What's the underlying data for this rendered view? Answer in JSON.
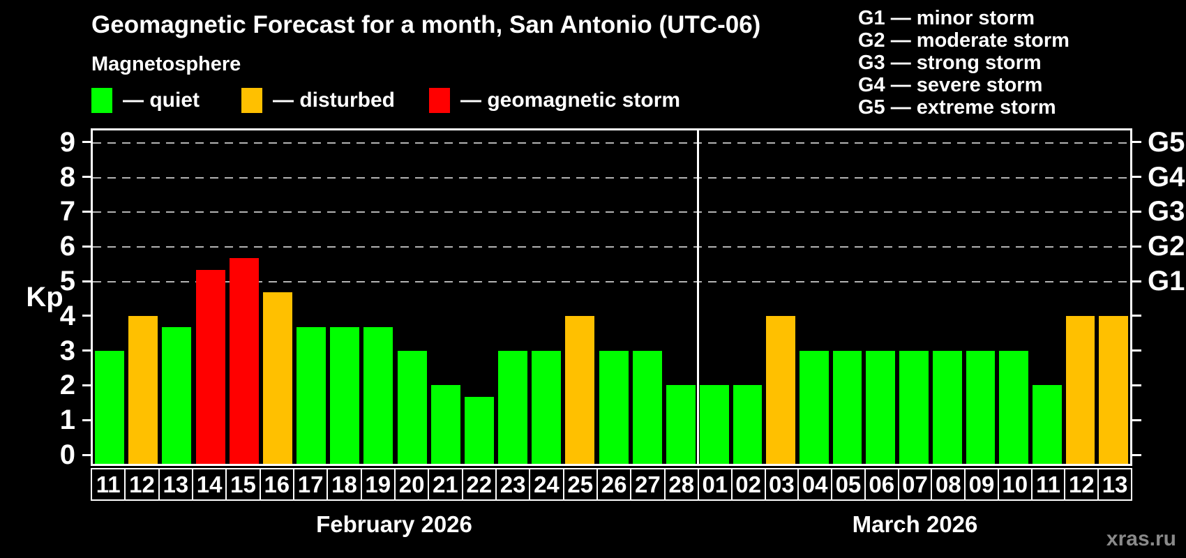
{
  "header": {
    "title": "Geomagnetic Forecast for a month, San Antonio (UTC-06)",
    "subtitle": "Magnetosphere"
  },
  "legend": {
    "items": [
      {
        "key": "quiet",
        "label": "— quiet",
        "color": "#00ff00"
      },
      {
        "key": "disturbed",
        "label": "— disturbed",
        "color": "#ffc000"
      },
      {
        "key": "storm",
        "label": "— geomagnetic storm",
        "color": "#ff0000"
      }
    ]
  },
  "g_scale_legend": {
    "items": [
      "G1 — minor storm",
      "G2 — moderate storm",
      "G3 — strong storm",
      "G4 — severe storm",
      "G5 — extreme storm"
    ]
  },
  "watermark": "xras.ru",
  "chart_data": {
    "type": "bar",
    "title": "Geomagnetic Forecast for a month, San Antonio (UTC-06)",
    "subtitle": "Magnetosphere",
    "ylabel": "Kp",
    "xlabel": "",
    "ylim": [
      0,
      9
    ],
    "yticks": [
      0,
      1,
      2,
      3,
      4,
      5,
      6,
      7,
      8,
      9
    ],
    "gridlines_at_kp": [
      5,
      6,
      7,
      8,
      9
    ],
    "grid_style": "dashed gray horizontal lines at storm levels only",
    "legend_position": "top-left",
    "colors": {
      "quiet": "#00ff00",
      "disturbed": "#ffc000",
      "storm": "#ff0000"
    },
    "right_axis_labels": [
      {
        "text": "G1",
        "kp": 5
      },
      {
        "text": "G2",
        "kp": 6
      },
      {
        "text": "G3",
        "kp": 7
      },
      {
        "text": "G4",
        "kp": 8
      },
      {
        "text": "G5",
        "kp": 9
      }
    ],
    "months": [
      {
        "label": "February 2026",
        "days": [
          {
            "day": "11",
            "kp": 3,
            "status": "quiet"
          },
          {
            "day": "12",
            "kp": 4,
            "status": "disturbed"
          },
          {
            "day": "13",
            "kp": 3.67,
            "status": "quiet"
          },
          {
            "day": "14",
            "kp": 5.33,
            "status": "storm"
          },
          {
            "day": "15",
            "kp": 5.67,
            "status": "storm"
          },
          {
            "day": "16",
            "kp": 4.67,
            "status": "disturbed"
          },
          {
            "day": "17",
            "kp": 3.67,
            "status": "quiet"
          },
          {
            "day": "18",
            "kp": 3.67,
            "status": "quiet"
          },
          {
            "day": "19",
            "kp": 3.67,
            "status": "quiet"
          },
          {
            "day": "20",
            "kp": 3,
            "status": "quiet"
          },
          {
            "day": "21",
            "kp": 2,
            "status": "quiet"
          },
          {
            "day": "22",
            "kp": 1.67,
            "status": "quiet"
          },
          {
            "day": "23",
            "kp": 3,
            "status": "quiet"
          },
          {
            "day": "24",
            "kp": 3,
            "status": "quiet"
          },
          {
            "day": "25",
            "kp": 4,
            "status": "disturbed"
          },
          {
            "day": "26",
            "kp": 3,
            "status": "quiet"
          },
          {
            "day": "27",
            "kp": 3,
            "status": "quiet"
          },
          {
            "day": "28",
            "kp": 2,
            "status": "quiet"
          }
        ]
      },
      {
        "label": "March 2026",
        "days": [
          {
            "day": "01",
            "kp": 2,
            "status": "quiet"
          },
          {
            "day": "02",
            "kp": 2,
            "status": "quiet"
          },
          {
            "day": "03",
            "kp": 4,
            "status": "disturbed"
          },
          {
            "day": "04",
            "kp": 3,
            "status": "quiet"
          },
          {
            "day": "05",
            "kp": 3,
            "status": "quiet"
          },
          {
            "day": "06",
            "kp": 3,
            "status": "quiet"
          },
          {
            "day": "07",
            "kp": 3,
            "status": "quiet"
          },
          {
            "day": "08",
            "kp": 3,
            "status": "quiet"
          },
          {
            "day": "09",
            "kp": 3,
            "status": "quiet"
          },
          {
            "day": "10",
            "kp": 3,
            "status": "quiet"
          },
          {
            "day": "11",
            "kp": 2,
            "status": "quiet"
          },
          {
            "day": "12",
            "kp": 4,
            "status": "disturbed"
          },
          {
            "day": "13",
            "kp": 4,
            "status": "disturbed"
          }
        ]
      }
    ]
  }
}
